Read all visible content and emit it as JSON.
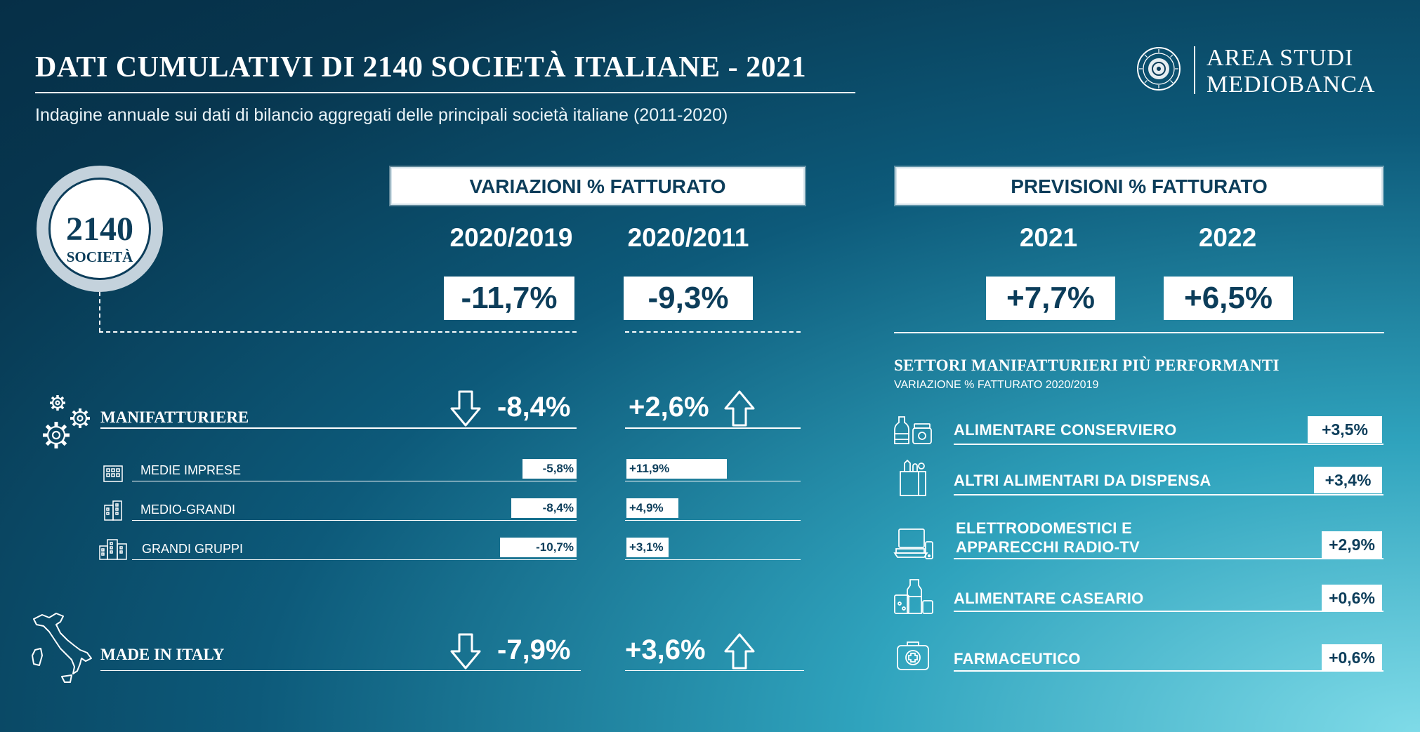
{
  "header": {
    "title": "DATI CUMULATIVI DI 2140 SOCIETÀ ITALIANE - 2021",
    "subtitle": "Indagine annuale sui dati di bilancio aggregati delle principali società italiane (2011-2020)"
  },
  "logo": {
    "line1": "AREA STUDI",
    "line2": "MEDIOBANCA",
    "seal_icon": "mediobanca-seal-icon"
  },
  "badge": {
    "count": "2140",
    "label": "SOCIETÀ"
  },
  "variazioni": {
    "header": "VARIAZIONI % FATTURATO",
    "periods": [
      "2020/2019",
      "2020/2011"
    ],
    "totals": [
      "-11,7%",
      "-9,3%"
    ],
    "rows": {
      "manifatturiere": {
        "label": "MANIFATTURIERE",
        "icon": "gears-icon",
        "val_2020_2019": "-8,4%",
        "val_2020_2011": "+2,6%",
        "trend_2020_2019": "down",
        "trend_2020_2011": "up"
      },
      "medie": {
        "label": "MEDIE IMPRESE",
        "icon": "small-building-icon",
        "val_2020_2019": "-5,8%",
        "val_2020_2011": "+11,9%",
        "num_2020_2019": -5.8,
        "num_2020_2011": 11.9
      },
      "medio_grandi": {
        "label": "MEDIO-GRANDI",
        "icon": "medium-building-icon",
        "val_2020_2019": "-8,4%",
        "val_2020_2011": "+4,9%",
        "num_2020_2019": -8.4,
        "num_2020_2011": 4.9
      },
      "grandi_gruppi": {
        "label": "GRANDI GRUPPI",
        "icon": "large-buildings-icon",
        "val_2020_2019": "-10,7%",
        "val_2020_2011": "+3,1%",
        "num_2020_2019": -10.7,
        "num_2020_2011": 3.1
      },
      "made_in_italy": {
        "label": "MADE IN ITALY",
        "icon": "italy-map-icon",
        "val_2020_2019": "-7,9%",
        "val_2020_2011": "+3,6%",
        "trend_2020_2019": "down",
        "trend_2020_2011": "up"
      }
    }
  },
  "previsioni": {
    "header": "PREVISIONI % FATTURATO",
    "years": [
      "2021",
      "2022"
    ],
    "values": [
      "+7,7%",
      "+6,5%"
    ]
  },
  "settori": {
    "title": "SETTORI MANIFATTURIERI PIÙ PERFORMANTI",
    "subtitle": "VARIAZIONE % FATTURATO 2020/2019",
    "items": [
      {
        "label": "ALIMENTARE CONSERVIERO",
        "value": "+3,5%",
        "icon": "jars-icon"
      },
      {
        "label": "ALTRI ALIMENTARI DA DISPENSA",
        "value": "+3,4%",
        "icon": "grocery-bag-icon"
      },
      {
        "label_line1": "ELETTRODOMESTICI E",
        "label_line2": "APPARECCHI RADIO-TV",
        "value": "+2,9%",
        "icon": "devices-icon"
      },
      {
        "label": "ALIMENTARE CASEARIO",
        "value": "+0,6%",
        "icon": "dairy-icon"
      },
      {
        "label": "FARMACEUTICO",
        "value": "+0,6%",
        "icon": "first-aid-kit-icon"
      }
    ]
  },
  "colors": {
    "navy": "#0c3d5a",
    "background_dark": "#062f47",
    "background_light": "#7fdbe8",
    "white": "#ffffff"
  }
}
